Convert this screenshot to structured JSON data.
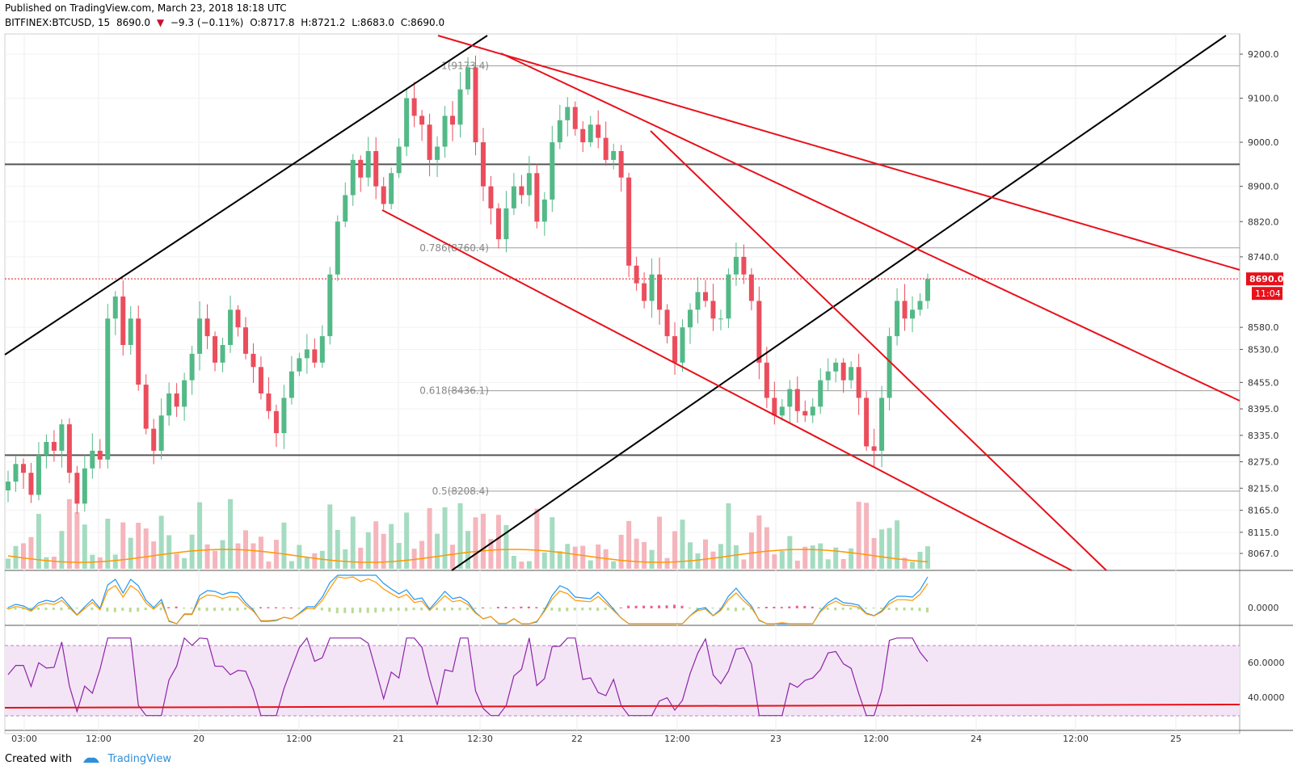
{
  "header": {
    "published": "Published on TradingView.com, March 23, 2018 18:18 UTC",
    "symbol": "BITFINEX:BTCUSD, 15",
    "last": "8690.0",
    "change": "−9.3 (−0.11%)",
    "open": "O:8717.8",
    "high": "H:8721.2",
    "low": "L:8683.0",
    "close": "C:8690.0",
    "down_arrow": "▼"
  },
  "footer": {
    "created_with": "Created with",
    "brand": "TradingView"
  },
  "colors": {
    "up": "#53b987",
    "down": "#eb4d5c",
    "trendline_red": "#e8101a",
    "trendline_black": "#000000",
    "rsi_band": "#f3e5f5",
    "rsi_line": "#8e24aa",
    "macd_line": "#2196f3",
    "signal_line": "#ff9800",
    "price_badge": "#e8101a"
  },
  "price_axis": {
    "ticks": [
      "9200.0",
      "9100.0",
      "9000.0",
      "8900.0",
      "8820.0",
      "8740.0",
      "8690.0",
      "8580.0",
      "8530.0",
      "8455.0",
      "8395.0",
      "8335.0",
      "8275.0",
      "8215.0",
      "8165.0",
      "8115.0",
      "8067.0"
    ],
    "current_price": "8690.0",
    "countdown": "11:04"
  },
  "macd_axis": {
    "ticks": [
      "0.0000"
    ]
  },
  "rsi_axis": {
    "ticks": [
      "60.0000",
      "40.0000"
    ]
  },
  "time_axis": {
    "labels": [
      "03:00",
      "12:00",
      "20",
      "12:00",
      "21",
      "12:30",
      "22",
      "12:00",
      "23",
      "12:00",
      "24",
      "12:00",
      "25"
    ]
  },
  "fib_levels": [
    {
      "label": "1(9173.4)",
      "price": 9173.4
    },
    {
      "label": "0.786(8760.4)",
      "price": 8760.4
    },
    {
      "label": "0.618(8436.1)",
      "price": 8436.1
    },
    {
      "label": "0.5(8208.4)",
      "price": 8208.4
    }
  ],
  "chart_data": {
    "type": "candlestick",
    "symbol": "BITFINEX:BTCUSD",
    "interval": "15",
    "horizontal_levels": [
      8950,
      8290
    ],
    "ylim": [
      8030,
      9240
    ],
    "series_close_approx": [
      8230,
      8270,
      8250,
      8200,
      8290,
      8320,
      8300,
      8360,
      8250,
      8180,
      8260,
      8300,
      8280,
      8600,
      8650,
      8540,
      8600,
      8450,
      8350,
      8300,
      8380,
      8430,
      8400,
      8460,
      8520,
      8600,
      8560,
      8500,
      8540,
      8620,
      8580,
      8520,
      8490,
      8430,
      8390,
      8340,
      8420,
      8480,
      8510,
      8530,
      8500,
      8560,
      8700,
      8820,
      8880,
      8960,
      8920,
      8980,
      8900,
      8860,
      8930,
      8990,
      9100,
      9060,
      9040,
      8960,
      8990,
      9060,
      9040,
      9120,
      9170,
      9000,
      8900,
      8850,
      8780,
      8850,
      8900,
      8880,
      8930,
      8820,
      8870,
      9000,
      9050,
      9080,
      9030,
      9000,
      9040,
      9010,
      8960,
      8980,
      8920,
      8720,
      8680,
      8640,
      8700,
      8620,
      8560,
      8500,
      8580,
      8620,
      8660,
      8640,
      8600,
      8600,
      8700,
      8740,
      8700,
      8640,
      8500,
      8420,
      8380,
      8400,
      8440,
      8390,
      8380,
      8400,
      8460,
      8480,
      8500,
      8460,
      8490,
      8420,
      8310,
      8300,
      8420,
      8560,
      8640,
      8600,
      8620,
      8640,
      8690
    ]
  }
}
